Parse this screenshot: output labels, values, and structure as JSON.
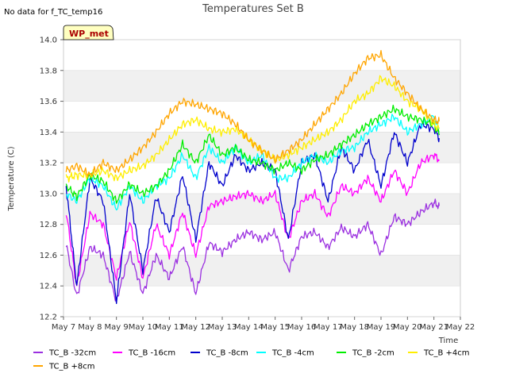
{
  "chart_data": {
    "type": "line",
    "title": "Temperatures Set B",
    "no_data_note": "No data for f_TC_temp16",
    "site_badge": "WP_met",
    "xlabel": "Time",
    "ylabel": "Temperature (C)",
    "ylim": [
      12.2,
      14.0
    ],
    "yticks": [
      "12.2",
      "12.4",
      "12.6",
      "12.8",
      "13.0",
      "13.2",
      "13.4",
      "13.6",
      "13.8",
      "14.0"
    ],
    "xlim": [
      7,
      22
    ],
    "xtick_values": [
      7,
      8,
      9,
      10,
      11,
      12,
      13,
      14,
      15,
      16,
      17,
      18,
      19,
      20,
      21,
      22
    ],
    "xticks": [
      "May 7",
      "May 8",
      "May 9",
      "May 10",
      "May 11",
      "May 12",
      "May 13",
      "May 14",
      "May 15",
      "May 16",
      "May 17",
      "May 18",
      "May 19",
      "May 20",
      "May 21",
      "May 22"
    ],
    "x": [
      7.1,
      7.5,
      8.0,
      8.5,
      9.0,
      9.5,
      10.0,
      10.5,
      11.0,
      11.5,
      12.0,
      12.5,
      13.0,
      13.5,
      14.0,
      14.5,
      15.0,
      15.5,
      16.0,
      16.5,
      17.0,
      17.5,
      18.0,
      18.5,
      19.0,
      19.5,
      20.0,
      20.5,
      21.0,
      21.2
    ],
    "series": [
      {
        "name": "TC_B -32cm",
        "color": "#9b30e0",
        "values": [
          12.67,
          12.33,
          12.65,
          12.6,
          12.3,
          12.62,
          12.35,
          12.6,
          12.45,
          12.66,
          12.35,
          12.68,
          12.62,
          12.7,
          12.75,
          12.7,
          12.75,
          12.5,
          12.72,
          12.75,
          12.65,
          12.78,
          12.72,
          12.8,
          12.6,
          12.85,
          12.8,
          12.88,
          12.94,
          12.92
        ]
      },
      {
        "name": "TC_B -16cm",
        "color": "#ff00ff",
        "values": [
          12.88,
          12.4,
          12.87,
          12.8,
          12.45,
          12.82,
          12.45,
          12.8,
          12.6,
          12.88,
          12.6,
          12.92,
          12.95,
          12.98,
          13.0,
          12.95,
          13.0,
          12.7,
          12.95,
          13.0,
          12.85,
          13.05,
          13.0,
          13.1,
          12.95,
          13.15,
          13.0,
          13.2,
          13.25,
          13.22
        ]
      },
      {
        "name": "TC_B -8cm",
        "color": "#0000cc",
        "values": [
          13.05,
          12.4,
          13.1,
          12.95,
          12.3,
          13.0,
          12.5,
          12.98,
          12.75,
          13.12,
          12.7,
          13.2,
          13.05,
          13.25,
          13.15,
          13.2,
          13.15,
          12.7,
          13.2,
          13.25,
          12.95,
          13.3,
          13.15,
          13.35,
          13.05,
          13.4,
          13.2,
          13.45,
          13.42,
          13.36
        ]
      },
      {
        "name": "TC_B -4cm",
        "color": "#00ffff",
        "values": [
          13.0,
          12.95,
          13.1,
          13.05,
          12.9,
          13.05,
          12.95,
          13.05,
          13.1,
          13.25,
          13.1,
          13.3,
          13.2,
          13.3,
          13.2,
          13.25,
          13.1,
          13.1,
          13.2,
          13.25,
          13.2,
          13.28,
          13.3,
          13.4,
          13.45,
          13.5,
          13.4,
          13.45,
          13.5,
          13.4
        ]
      },
      {
        "name": "TC_B -2cm",
        "color": "#00ee00",
        "values": [
          13.05,
          12.98,
          13.12,
          13.08,
          12.95,
          13.06,
          13.0,
          13.05,
          13.15,
          13.32,
          13.2,
          13.38,
          13.25,
          13.3,
          13.22,
          13.2,
          13.15,
          13.2,
          13.15,
          13.22,
          13.25,
          13.32,
          13.38,
          13.45,
          13.5,
          13.55,
          13.5,
          13.48,
          13.45,
          13.38
        ]
      },
      {
        "name": "TC_B +4cm",
        "color": "#ffee00",
        "values": [
          13.1,
          13.12,
          13.12,
          13.15,
          13.1,
          13.15,
          13.18,
          13.25,
          13.35,
          13.45,
          13.48,
          13.42,
          13.4,
          13.42,
          13.35,
          13.28,
          13.22,
          13.25,
          13.3,
          13.35,
          13.4,
          13.48,
          13.6,
          13.65,
          13.75,
          13.7,
          13.6,
          13.55,
          13.45,
          13.42
        ]
      },
      {
        "name": "TC_B +8cm",
        "color": "#ffa500",
        "values": [
          13.15,
          13.18,
          13.12,
          13.2,
          13.15,
          13.22,
          13.3,
          13.4,
          13.52,
          13.6,
          13.58,
          13.55,
          13.52,
          13.45,
          13.35,
          13.28,
          13.22,
          13.28,
          13.35,
          13.45,
          13.55,
          13.65,
          13.78,
          13.88,
          13.9,
          13.75,
          13.65,
          13.55,
          13.48,
          13.47
        ]
      }
    ]
  }
}
